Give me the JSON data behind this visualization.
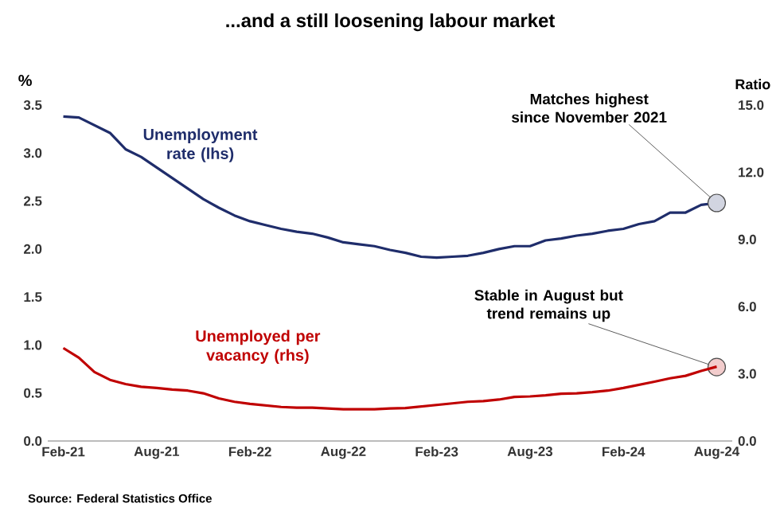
{
  "chart_data": {
    "type": "line",
    "title": "...and a still loosening labour market",
    "ylabel": "%",
    "y2label": "Ratio",
    "x": [
      "2021-02",
      "2021-03",
      "2021-04",
      "2021-05",
      "2021-06",
      "2021-07",
      "2021-08",
      "2021-09",
      "2021-10",
      "2021-11",
      "2021-12",
      "2022-01",
      "2022-02",
      "2022-03",
      "2022-04",
      "2022-05",
      "2022-06",
      "2022-07",
      "2022-08",
      "2022-09",
      "2022-10",
      "2022-11",
      "2022-12",
      "2023-01",
      "2023-02",
      "2023-03",
      "2023-04",
      "2023-05",
      "2023-06",
      "2023-07",
      "2023-08",
      "2023-09",
      "2023-10",
      "2023-11",
      "2023-12",
      "2024-01",
      "2024-02",
      "2024-03",
      "2024-04",
      "2024-05",
      "2024-06",
      "2024-07",
      "2024-08"
    ],
    "series": [
      {
        "name": "Unemployment rate (lhs)",
        "color": "#1f2d6b",
        "values": [
          3.38,
          3.37,
          3.29,
          3.21,
          3.04,
          2.96,
          2.85,
          2.74,
          2.63,
          2.52,
          2.43,
          2.35,
          2.29,
          2.25,
          2.21,
          2.18,
          2.16,
          2.12,
          2.07,
          2.05,
          2.03,
          1.99,
          1.96,
          1.92,
          1.91,
          1.92,
          1.93,
          1.96,
          2.0,
          2.03,
          2.03,
          2.09,
          2.11,
          2.14,
          2.16,
          2.19,
          2.21,
          2.26,
          2.29,
          2.38,
          2.38,
          2.46,
          2.48
        ]
      },
      {
        "name": "Unemployed per vacancy (rhs)",
        "color": "#c00000",
        "axis": "y2",
        "values": [
          4.15,
          3.72,
          3.08,
          2.73,
          2.54,
          2.42,
          2.37,
          2.3,
          2.25,
          2.13,
          1.9,
          1.75,
          1.66,
          1.59,
          1.52,
          1.49,
          1.49,
          1.45,
          1.42,
          1.42,
          1.42,
          1.45,
          1.47,
          1.54,
          1.61,
          1.68,
          1.75,
          1.78,
          1.85,
          1.97,
          1.99,
          2.04,
          2.11,
          2.13,
          2.18,
          2.25,
          2.37,
          2.51,
          2.65,
          2.8,
          2.91,
          3.13,
          3.32
        ]
      }
    ],
    "xlim": [
      "2021-01",
      "2024-09"
    ],
    "xticks": [
      {
        "value": "2021-02",
        "label": "Feb-21"
      },
      {
        "value": "2021-08",
        "label": "Aug-21"
      },
      {
        "value": "2022-02",
        "label": "Feb-22"
      },
      {
        "value": "2022-08",
        "label": "Aug-22"
      },
      {
        "value": "2023-02",
        "label": "Feb-23"
      },
      {
        "value": "2023-08",
        "label": "Aug-23"
      },
      {
        "value": "2024-02",
        "label": "Feb-24"
      },
      {
        "value": "2024-08",
        "label": "Aug-24"
      }
    ],
    "ylim": [
      0,
      3.5
    ],
    "yticks": [
      {
        "value": 0,
        "label": "0.0"
      },
      {
        "value": 0.5,
        "label": "0.5"
      },
      {
        "value": 1,
        "label": "1.0"
      },
      {
        "value": 1.5,
        "label": "1.5"
      },
      {
        "value": 2,
        "label": "2.0"
      },
      {
        "value": 2.5,
        "label": "2.5"
      },
      {
        "value": 3,
        "label": "3.0"
      },
      {
        "value": 3.5,
        "label": "3.5"
      }
    ],
    "y2lim": [
      0,
      15
    ],
    "y2ticks": [
      {
        "value": 0,
        "label": "0.0"
      },
      {
        "value": 3,
        "label": "3.0"
      },
      {
        "value": 6,
        "label": "6.0"
      },
      {
        "value": 9,
        "label": "9.0"
      },
      {
        "value": 12,
        "label": "12.0"
      },
      {
        "value": 15,
        "label": "15.0"
      }
    ],
    "annotations": [
      {
        "text": "Matches highest since November 2021",
        "x": "2024-08",
        "y": 2.48
      },
      {
        "text": "Stable in August but trend remains up",
        "x": "2024-08",
        "y": 0.77
      },
      "Source: Federal Statistics Office"
    ],
    "grid": false,
    "marker": "none",
    "line_style": "solid"
  }
}
